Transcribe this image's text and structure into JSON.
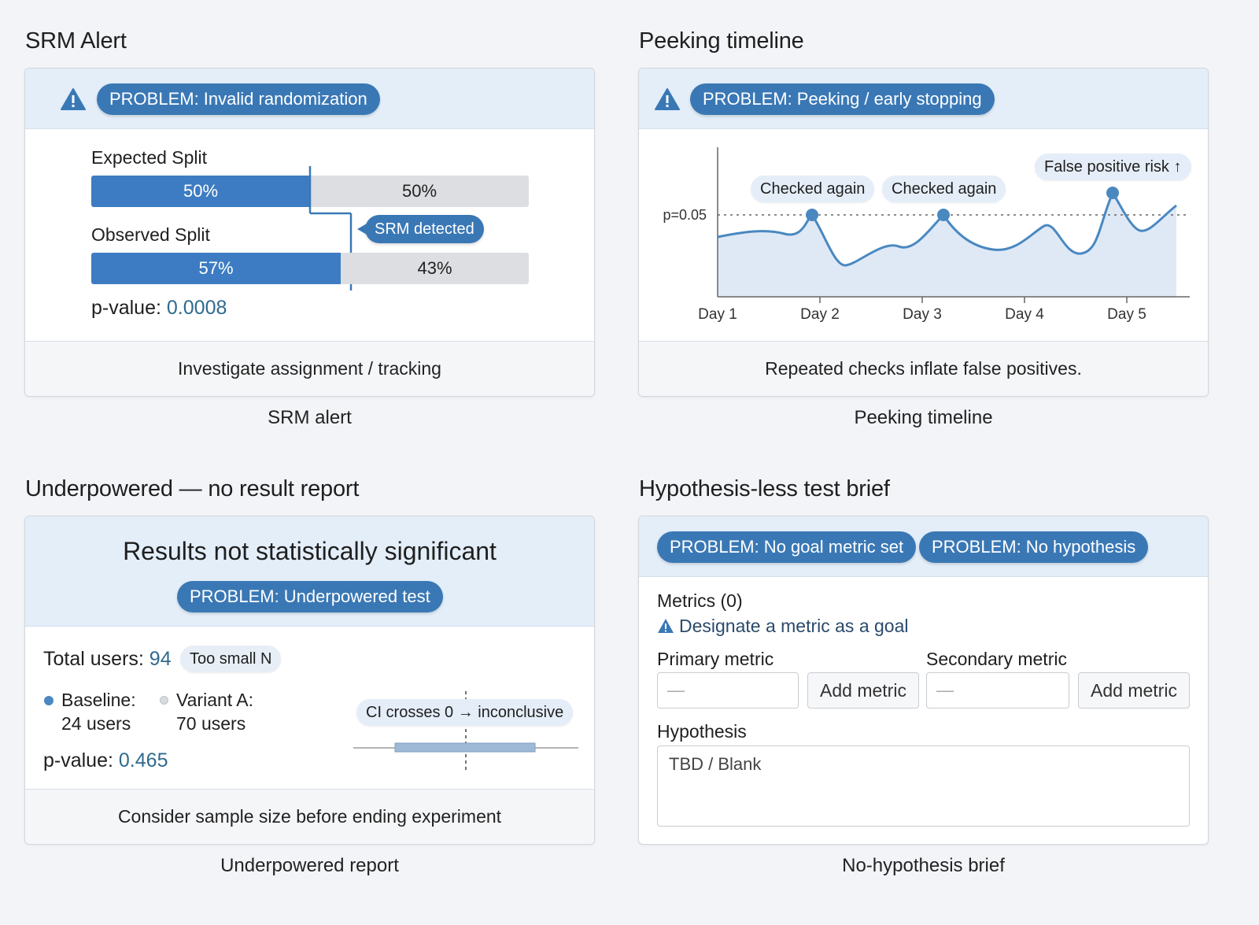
{
  "srm": {
    "section_title": "SRM Alert",
    "problem": "PROBLEM: Invalid randomization",
    "expected_label": "Expected Split",
    "expected_a": "50%",
    "expected_b": "50%",
    "expected_a_fraction": 0.5,
    "observed_label": "Observed Split",
    "observed_a": "57%",
    "observed_b": "43%",
    "observed_a_fraction": 0.57,
    "srm_badge": "SRM detected",
    "pvalue_label": "p-value:",
    "pvalue": "0.0008",
    "footer": "Investigate assignment / tracking",
    "caption": "SRM alert"
  },
  "peeking": {
    "section_title": "Peeking timeline",
    "problem": "PROBLEM: Peeking / early stopping",
    "footer": "Repeated checks inflate false positives.",
    "caption": "Peeking timeline"
  },
  "chart_data": {
    "type": "line",
    "x": [
      "Day 1",
      "Day 2",
      "Day 3",
      "Day 4",
      "Day 5"
    ],
    "threshold_label": "p=0.05",
    "annotations": [
      "Checked again",
      "Checked again",
      "False positive risk ↑"
    ],
    "grid": false
  },
  "underpowered": {
    "section_title": "Underpowered — no result report",
    "headline": "Results not statistically significant",
    "problem": "PROBLEM: Underpowered test",
    "total_label": "Total users:",
    "total_value": "94",
    "too_small": "Too small N",
    "baseline_label": "Baseline:",
    "baseline_users": "24 users",
    "variant_label": "Variant A:",
    "variant_users": "70 users",
    "pvalue_label": "p-value:",
    "pvalue": "0.465",
    "ci_label": "CI crosses 0 → inconclusive",
    "footer": "Consider sample size before ending experiment",
    "caption": "Underpowered report"
  },
  "brief": {
    "section_title": "Hypothesis-less test brief",
    "problem_metric": "PROBLEM: No goal metric set",
    "problem_hypothesis": "PROBLEM: No hypothesis",
    "metrics_label": "Metrics (0)",
    "designate": "Designate a metric as a goal",
    "primary_label": "Primary metric",
    "primary_value": "—",
    "secondary_label": "Secondary metric",
    "secondary_value": "—",
    "add_metric": "Add metric",
    "hypothesis_label": "Hypothesis",
    "hypothesis_value": "TBD / Blank",
    "caption": "No-hypothesis brief"
  },
  "colors": {
    "accent": "#3a78b5",
    "header_bg": "#e3eef9",
    "bar_blue": "#3d7cc2",
    "bar_gray": "#dcdee2"
  },
  "icons": [
    "warning-icon",
    "baseline-dot-icon",
    "variant-dot-icon",
    "arrow-up-icon"
  ]
}
